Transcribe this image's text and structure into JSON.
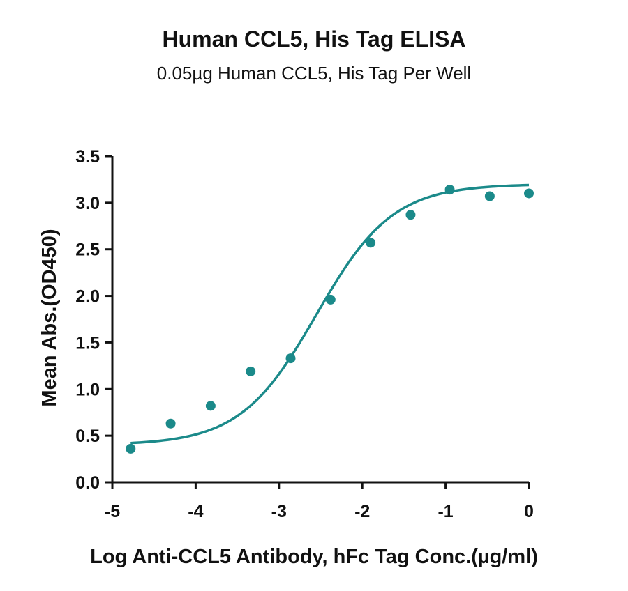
{
  "chart_data": {
    "type": "scatter",
    "title": "Human CCL5, His Tag ELISA",
    "subtitle": "0.05µg Human CCL5, His Tag Per Well",
    "xlabel": "Log Anti-CCL5 Antibody, hFc Tag Conc.(µg/ml)",
    "ylabel": "Mean Abs.(OD450)",
    "xlim": [
      -5,
      0
    ],
    "ylim": [
      0,
      3.5
    ],
    "xticks": [
      -5,
      -4,
      -3,
      -2,
      -1,
      0
    ],
    "xtick_labels": [
      "-5",
      "-4",
      "-3",
      "-2",
      "-1",
      "0"
    ],
    "yticks": [
      0,
      0.5,
      1,
      1.5,
      2,
      2.5,
      3,
      3.5
    ],
    "ytick_labels": [
      "0.0",
      "0.5",
      "1.0",
      "1.5",
      "2.0",
      "2.5",
      "3.0",
      "3.5"
    ],
    "grid": false,
    "color": "#1b8a8a",
    "points": {
      "x": [
        -4.78,
        -4.3,
        -3.82,
        -3.34,
        -2.86,
        -2.38,
        -1.9,
        -1.42,
        -0.95,
        -0.47,
        0.0
      ],
      "y": [
        0.36,
        0.63,
        0.82,
        1.19,
        1.33,
        1.96,
        2.57,
        2.87,
        3.14,
        3.07,
        3.1
      ]
    },
    "fit_curve": {
      "model": "4PL",
      "bottom": 0.4,
      "top": 3.2,
      "log_ec50": -2.55,
      "hill_slope": 0.95,
      "x_range": [
        -4.78,
        0.0
      ]
    }
  }
}
